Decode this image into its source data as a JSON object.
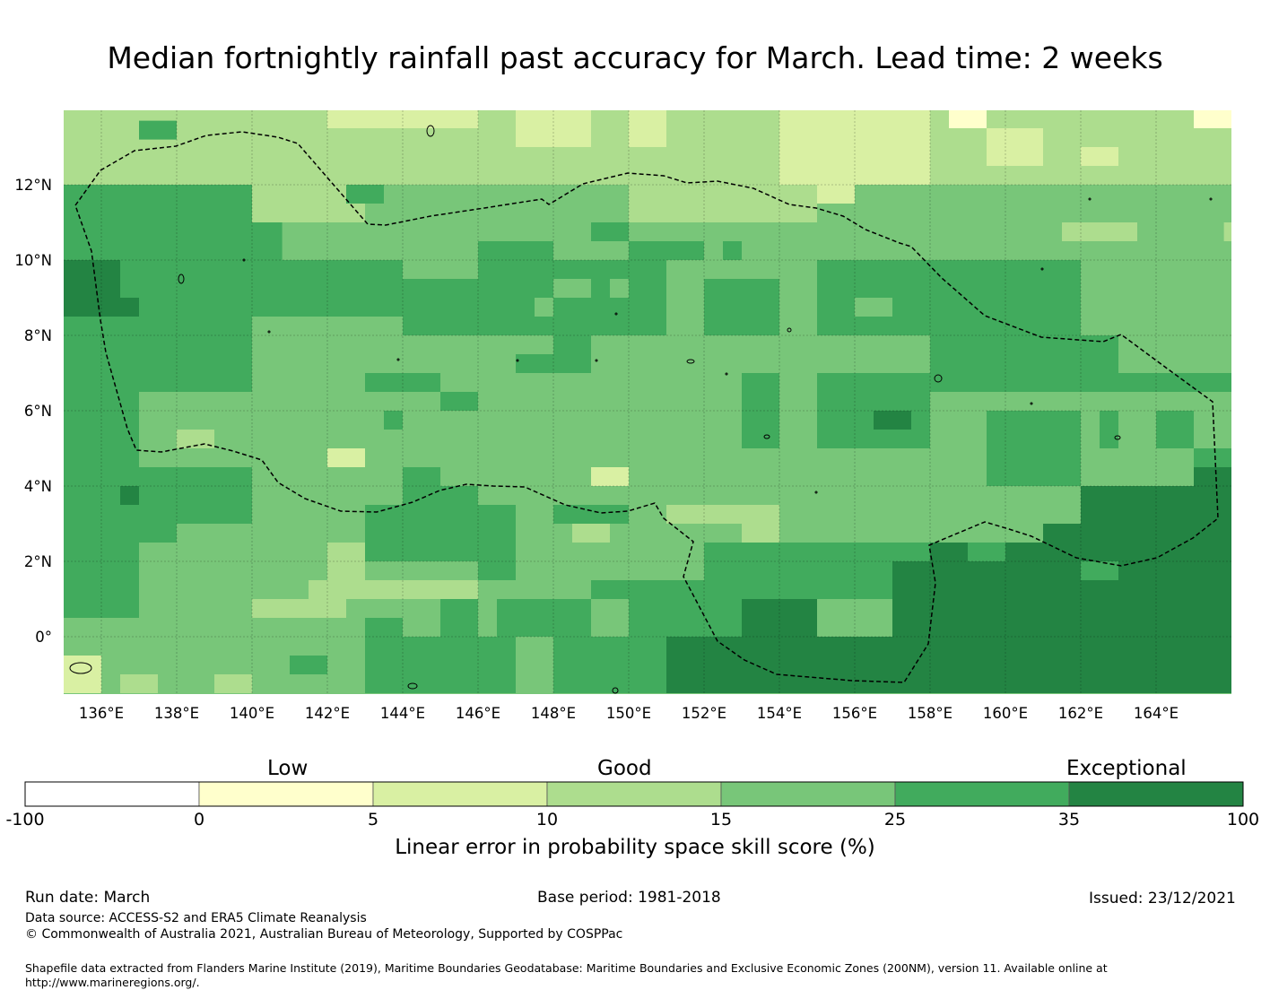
{
  "title": "Median fortnightly rainfall past accuracy for March. Lead time: 2 weeks",
  "map": {
    "lon_range": [
      135,
      166
    ],
    "lat_range": [
      -1.5,
      14
    ],
    "lon_ticks": [
      "136°E",
      "138°E",
      "140°E",
      "142°E",
      "144°E",
      "146°E",
      "148°E",
      "150°E",
      "152°E",
      "154°E",
      "156°E",
      "158°E",
      "160°E",
      "162°E",
      "164°E"
    ],
    "lat_ticks": [
      "12°N",
      "10°N",
      "8°N",
      "6°N",
      "4°N",
      "2°N",
      "0°"
    ],
    "colors": {
      "low": "#ffffcc",
      "c5": "#d9f0a3",
      "c10": "#addd8e",
      "c15": "#78c679",
      "c25": "#41ab5d",
      "c35": "#238443",
      "border": "#000000"
    }
  },
  "colorbar": {
    "categories": [
      "Low",
      "Good",
      "Exceptional"
    ],
    "ticks": [
      "-100",
      "0",
      "5",
      "10",
      "15",
      "25",
      "35",
      "100"
    ],
    "colors": [
      "#ffffff",
      "#ffffcc",
      "#d9f0a3",
      "#addd8e",
      "#78c679",
      "#41ab5d",
      "#238443"
    ],
    "label": "Linear error in probability space skill score (%)"
  },
  "footer": {
    "run_date": "Run date: March",
    "base_period": "Base period: 1981-2018",
    "issued": "Issued: 23/12/2021",
    "data_source": "Data source: ACCESS-S2 and ERA5 Climate Reanalysis",
    "copyright": "© Commonwealth of Australia 2021, Australian Bureau of Meteorology, Supported by COSPPac",
    "shapefile": "Shapefile data extracted from Flanders Marine Institute (2019), Maritime Boundaries Geodatabase: Maritime Boundaries and Exclusive Economic Zones (200NM), version 11. Available online at http://www.marineregions.org/."
  }
}
